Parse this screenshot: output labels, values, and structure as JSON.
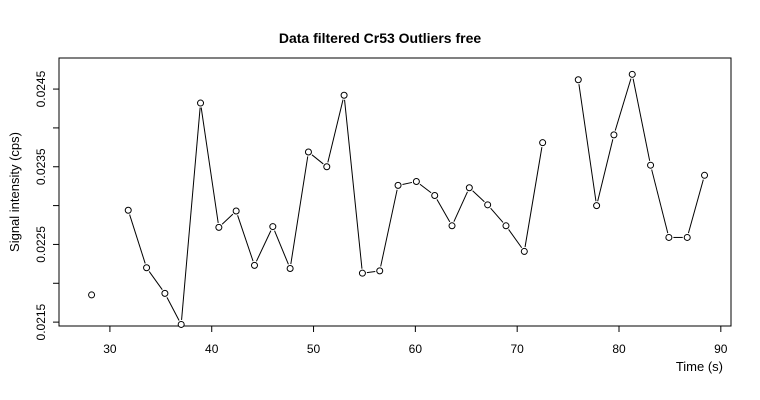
{
  "chart_data": {
    "type": "line",
    "title": "Data filtered Cr53 Outliers free",
    "xlabel": "Time (s)",
    "ylabel": "Signal intensity (cps)",
    "xlim": [
      25,
      91
    ],
    "ylim": [
      0.02145,
      0.0249
    ],
    "xticks": [
      30,
      40,
      50,
      60,
      70,
      80,
      90
    ],
    "yticks": [
      0.0215,
      0.0225,
      0.0235,
      0.0245
    ],
    "ytick_labels": [
      "0.0215",
      "0.0225",
      "0.0235",
      "0.0245"
    ],
    "grid": false,
    "series": [
      {
        "x": [
          28.2,
          31.8,
          33.6,
          35.4,
          37.0,
          38.9,
          40.7,
          42.4,
          44.2,
          46.0,
          47.7,
          49.5,
          51.3,
          53.0,
          54.8,
          56.5,
          58.3,
          60.1,
          61.9,
          63.6,
          65.3,
          67.1,
          68.9,
          70.7,
          72.5,
          76.0,
          77.8,
          79.5,
          81.3,
          83.1,
          84.9,
          86.7,
          88.4
        ],
        "y": [
          0.02185,
          0.02294,
          0.0222,
          0.02187,
          0.02147,
          0.02432,
          0.02272,
          0.02293,
          0.02223,
          0.02273,
          0.02219,
          0.02369,
          0.0235,
          0.02442,
          0.02213,
          0.02216,
          0.02326,
          0.02331,
          0.02313,
          0.02274,
          0.02323,
          0.02301,
          0.02274,
          0.02241,
          0.02381,
          0.02462,
          0.023,
          0.02391,
          0.02469,
          0.02352,
          0.02259,
          0.02259,
          0.02339
        ],
        "segments": [
          [
            0,
            0
          ],
          [
            1,
            24
          ],
          [
            25,
            32
          ]
        ]
      }
    ]
  }
}
